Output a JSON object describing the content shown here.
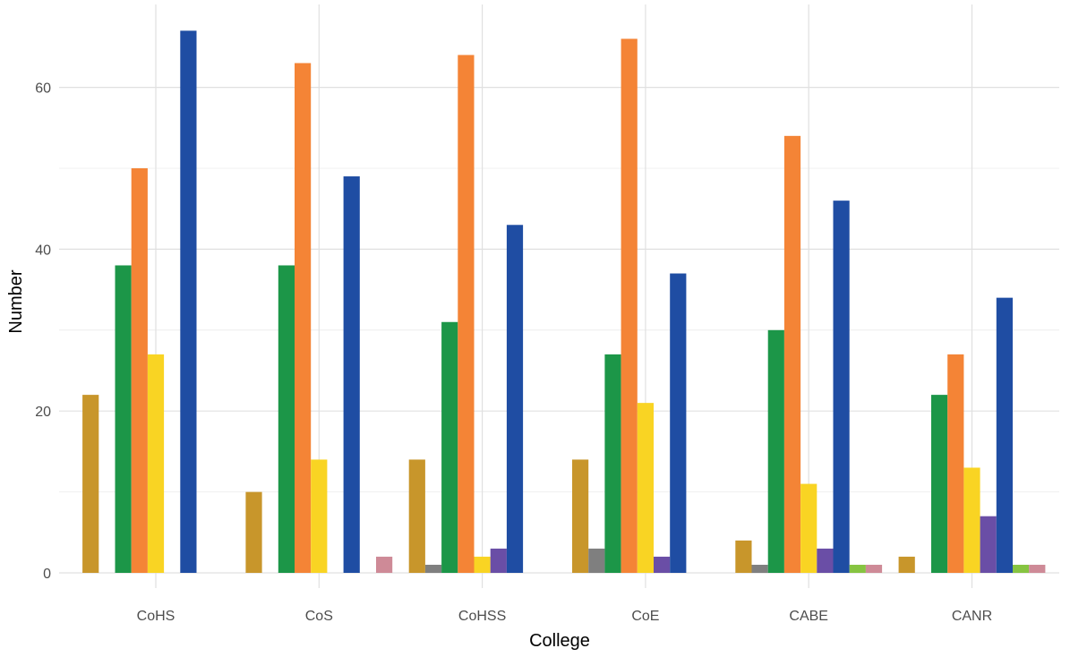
{
  "chart_data": {
    "type": "bar",
    "title": "",
    "xlabel": "College",
    "ylabel": "Number",
    "ylim": [
      0,
      67
    ],
    "yticks": [
      0,
      20,
      40,
      60
    ],
    "grid": true,
    "legend": "none",
    "categories": [
      "CoHS",
      "CoS",
      "CoHSS",
      "CoE",
      "CABE",
      "CANR"
    ],
    "series": [
      {
        "color": "#C8962B",
        "values": [
          22,
          10,
          14,
          14,
          4,
          2
        ]
      },
      {
        "color": "#7F7F7F",
        "values": [
          0,
          0,
          1,
          3,
          1,
          0
        ]
      },
      {
        "color": "#1C9648",
        "values": [
          38,
          38,
          31,
          27,
          30,
          22
        ]
      },
      {
        "color": "#F48436",
        "values": [
          50,
          63,
          64,
          66,
          54,
          27
        ]
      },
      {
        "color": "#F9D423",
        "values": [
          27,
          14,
          2,
          21,
          11,
          13
        ]
      },
      {
        "color": "#6A4EA6",
        "values": [
          0,
          0,
          3,
          2,
          3,
          7
        ]
      },
      {
        "color": "#1F4DA3",
        "values": [
          67,
          49,
          43,
          37,
          46,
          34
        ]
      },
      {
        "color": "#86C441",
        "values": [
          0,
          0,
          0,
          0,
          1,
          1
        ]
      },
      {
        "color": "#CE8A97",
        "values": [
          0,
          2,
          0,
          0,
          1,
          1
        ]
      }
    ]
  }
}
